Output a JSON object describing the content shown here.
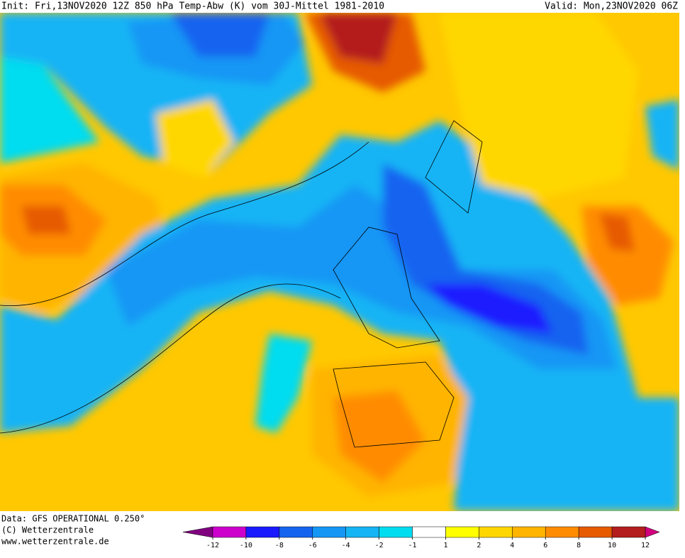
{
  "header": {
    "init": "Init: Fri,13NOV2020 12Z 850 hPa Temp-Abw (K) vom 30J-Mittel 1981-2010",
    "valid": "Valid: Mon,23NOV2020 06Z"
  },
  "footer": {
    "data": "Data: GFS OPERATIONAL 0.250°",
    "copyright": "(C) Wetterzentrale",
    "url": "www.wetterzentrale.de"
  },
  "colorbar": {
    "ticks": [
      -12,
      -10,
      -8,
      -6,
      -4,
      -2,
      -1,
      1,
      2,
      4,
      6,
      8,
      10,
      12
    ],
    "colors": [
      "#cc00cc",
      "#1a1aff",
      "#1464f0",
      "#1496f5",
      "#14b4f5",
      "#00dcf0",
      "#ffffff",
      "#ffff00",
      "#ffd700",
      "#ffb400",
      "#ff8c00",
      "#e65a00",
      "#b41e1e"
    ],
    "under_color": "#800080",
    "over_color": "#d2007d"
  }
}
